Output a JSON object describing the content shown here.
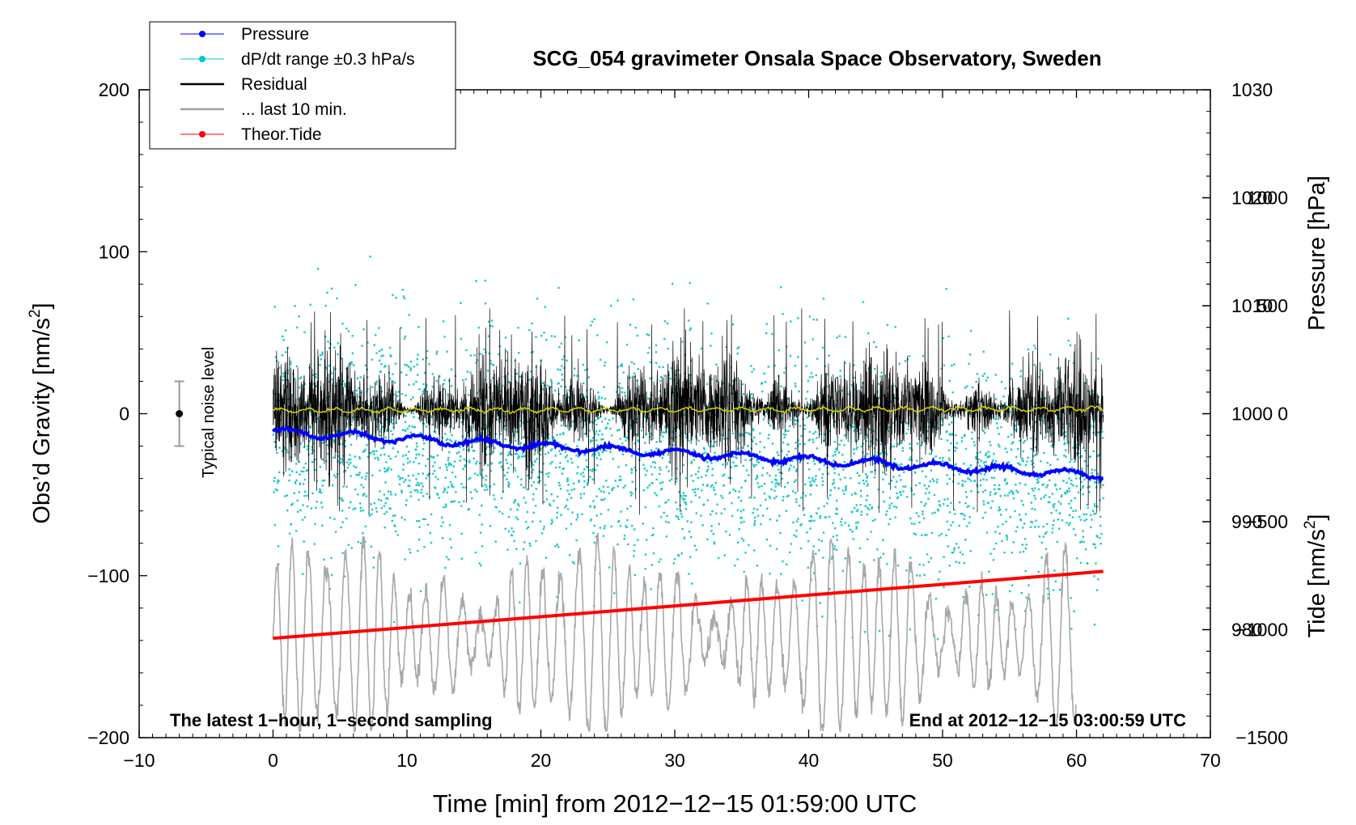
{
  "chart_data": {
    "type": "line",
    "title": "SCG_054 gravimeter Onsala Space Observatory, Sweden",
    "xlabel": "Time [min] from 2012−12−15 01:59:00 UTC",
    "ylabel_left": "Obs’d Gravity [nm/s",
    "ylabel_left_sup": "2",
    "ylabel_left_end": "]",
    "ylabel_right_pressure": "Pressure [hPa]",
    "ylabel_right_tide": "Tide [nm/s",
    "ylabel_right_tide_sup": "2",
    "ylabel_right_tide_end": "]",
    "xlim": [
      -10,
      70
    ],
    "ylim": [
      -200,
      200
    ],
    "pressure_lim": [
      970,
      1030
    ],
    "tide_lim": [
      -1500,
      1500
    ],
    "x_ticks": [
      "−10",
      "0",
      "10",
      "20",
      "30",
      "40",
      "50",
      "60",
      "70"
    ],
    "y_ticks": [
      "200",
      "100",
      "0",
      "−100",
      "−200"
    ],
    "pressure_ticks": [
      "1030",
      "1020",
      "1010",
      "1000",
      "990",
      "980"
    ],
    "tide_ticks": [
      "1000",
      "500",
      "0",
      "−500",
      "−1000",
      "−1500"
    ],
    "legend": [
      {
        "label": "Pressure",
        "color": "#0000ff",
        "marker": true
      },
      {
        "label": "dP/dt range ±0.3 hPa/s",
        "color": "#00c8c8",
        "marker": true
      },
      {
        "label": "Residual",
        "color": "#000000",
        "marker": false
      },
      {
        "label": "... last 10 min.",
        "color": "#a0a0a0",
        "marker": false
      },
      {
        "label": "Theor.Tide",
        "color": "#ff0000",
        "marker": true
      }
    ],
    "noise_label": "Typical noise level",
    "noise_bar": {
      "x": -7,
      "center": 0,
      "half_range": 20
    },
    "annotation_left": "The latest 1−hour, 1−second sampling",
    "annotation_right": "End at 2012−12−15 03:00:59 UTC",
    "series": [
      {
        "name": "Pressure",
        "axis": "pressure",
        "x": [
          0,
          62
        ],
        "values": [
          998.3,
          994.3
        ]
      },
      {
        "name": "Theor.Tide",
        "axis": "tide",
        "x": [
          0,
          62
        ],
        "values": [
          -1040,
          -730
        ]
      },
      {
        "name": "Residual mean",
        "axis": "gravity",
        "x": [
          0,
          62
        ],
        "values": [
          2,
          3
        ]
      }
    ]
  }
}
